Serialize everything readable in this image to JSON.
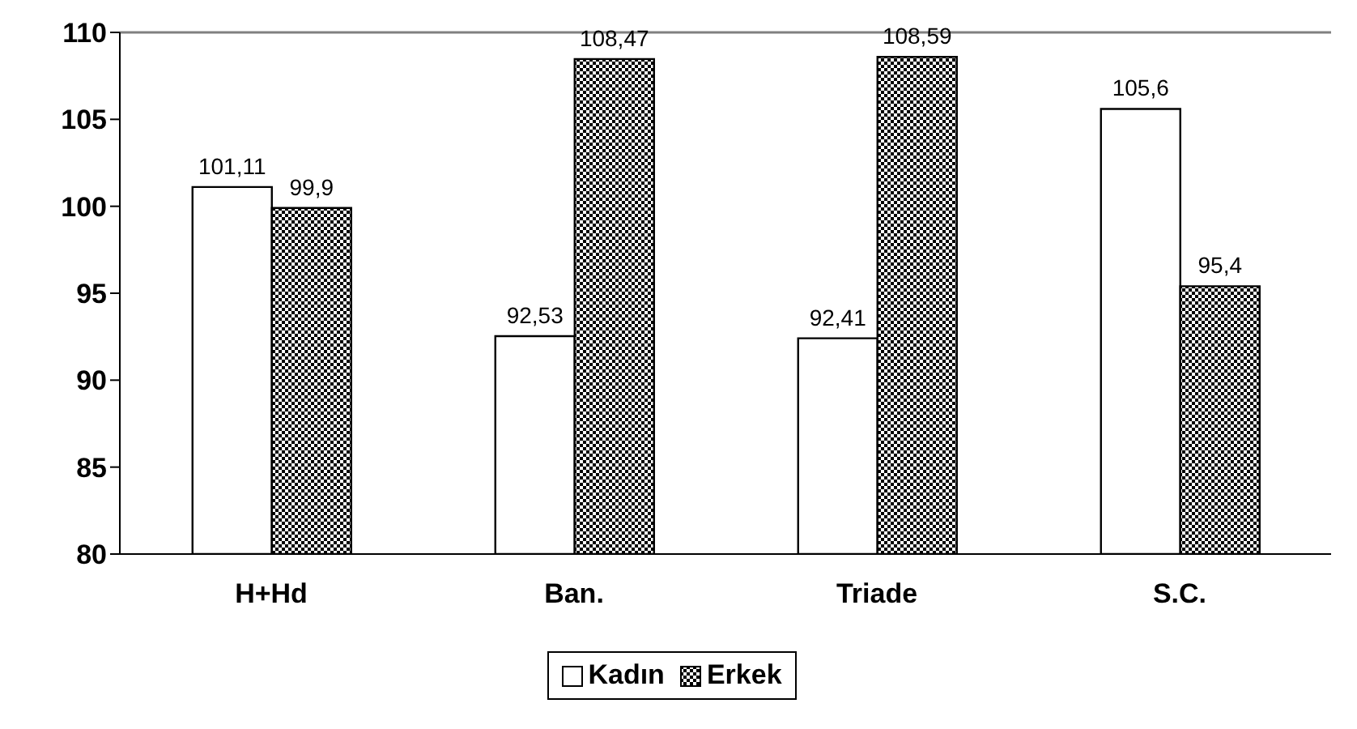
{
  "chart_data": {
    "type": "bar",
    "categories": [
      "H+Hd",
      "Ban.",
      "Triade",
      "S.C."
    ],
    "series": [
      {
        "name": "Kadın",
        "color": "#ffffff",
        "values": [
          101.11,
          92.53,
          92.41,
          105.6
        ],
        "value_labels": [
          "101,11",
          "92,53",
          "92,41",
          "105,6"
        ]
      },
      {
        "name": "Erkek",
        "color": "#000000",
        "values": [
          99.9,
          108.47,
          108.59,
          95.4
        ],
        "value_labels": [
          "99,9",
          "108,47",
          "108,59",
          "95,4"
        ]
      }
    ],
    "ylim": [
      80,
      110
    ],
    "yticks": [
      80,
      85,
      90,
      95,
      100,
      105,
      110
    ],
    "legend": "bottom",
    "ref_lines": [
      {
        "axis": "y",
        "value": 110,
        "color": "#808080"
      }
    ]
  }
}
